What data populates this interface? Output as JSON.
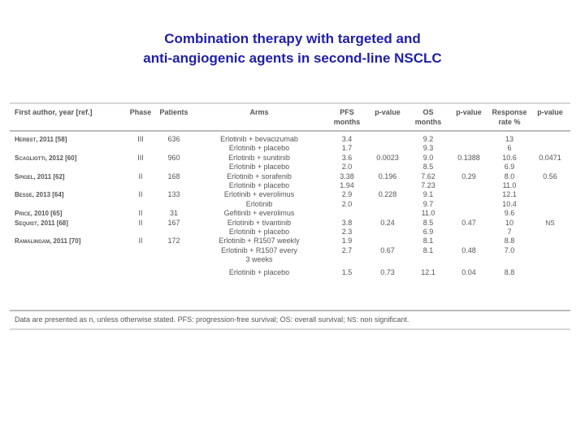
{
  "title": {
    "line1": "Combination therapy with targeted and",
    "line2": "anti-angiogenic agents in second-line NSCLC"
  },
  "table": {
    "headers": {
      "author": "First author, year [ref.]",
      "phase": "Phase",
      "patients": "Patients",
      "arms": "Arms",
      "pfs_line1": "PFS",
      "pfs_line2": "months",
      "pfs_p": "p-value",
      "os_line1": "OS",
      "os_line2": "months",
      "os_p": "p-value",
      "rr_line1": "Response",
      "rr_line2": "rate %",
      "rr_p": "p-value"
    },
    "rows": [
      {
        "author": "Herbst, 2011 [58]",
        "phase": "III",
        "patients": "636",
        "arm": "Erlotinib + bevacizumab",
        "pfs": "3.4",
        "pfs_p": "",
        "os": "9.2",
        "os_p": "",
        "rr": "13",
        "rr_p": ""
      },
      {
        "author": "",
        "phase": "",
        "patients": "",
        "arm": "Erlotinib + placebo",
        "pfs": "1.7",
        "pfs_p": "",
        "os": "9.3",
        "os_p": "",
        "rr": "6",
        "rr_p": ""
      },
      {
        "author": "Scagliotti, 2012 [60]",
        "phase": "III",
        "patients": "960",
        "arm": "Erlotinib + sunitinib",
        "pfs": "3.6",
        "pfs_p": "0.0023",
        "os": "9.0",
        "os_p": "0.1388",
        "rr": "10.6",
        "rr_p": "0.0471"
      },
      {
        "author": "",
        "phase": "",
        "patients": "",
        "arm": "Erlotinib + placebo",
        "pfs": "2.0",
        "pfs_p": "",
        "os": "8.5",
        "os_p": "",
        "rr": "6.9",
        "rr_p": ""
      },
      {
        "author": "Spigel, 2011 [62]",
        "phase": "II",
        "patients": "168",
        "arm": "Erlotinib + sorafenib",
        "pfs": "3.38",
        "pfs_p": "0.196",
        "os": "7.62",
        "os_p": "0.29",
        "rr": "8.0",
        "rr_p": "0.56"
      },
      {
        "author": "",
        "phase": "",
        "patients": "",
        "arm": "Erlotinib + placebo",
        "pfs": "1.94",
        "pfs_p": "",
        "os": "7.23",
        "os_p": "",
        "rr": "11.0",
        "rr_p": ""
      },
      {
        "author": "Besse, 2013 [64]",
        "phase": "II",
        "patients": "133",
        "arm": "Erlotinib + everolimus",
        "pfs": "2.9",
        "pfs_p": "0.228",
        "os": "9.1",
        "os_p": "",
        "rr": "12.1",
        "rr_p": ""
      },
      {
        "author": "",
        "phase": "",
        "patients": "",
        "arm": "Erlotinib",
        "pfs": "2.0",
        "pfs_p": "",
        "os": "9.7",
        "os_p": "",
        "rr": "10.4",
        "rr_p": ""
      },
      {
        "author": "Price, 2010 [65]",
        "phase": "II",
        "patients": "31",
        "arm": "Gefitinib + everolimus",
        "pfs": "",
        "pfs_p": "",
        "os": "11.0",
        "os_p": "",
        "rr": "9.6",
        "rr_p": ""
      },
      {
        "author": "Sequist, 2011 [68]",
        "phase": "II",
        "patients": "167",
        "arm": "Erlotinib + tivantinib",
        "pfs": "3.8",
        "pfs_p": "0.24",
        "os": "8.5",
        "os_p": "0.47",
        "rr": "10",
        "rr_p": "NS"
      },
      {
        "author": "",
        "phase": "",
        "patients": "",
        "arm": "Erlotinib + placebo",
        "pfs": "2.3",
        "pfs_p": "",
        "os": "6.9",
        "os_p": "",
        "rr": "7",
        "rr_p": ""
      },
      {
        "author": "Ramalingam, 2011 [70]",
        "phase": "II",
        "patients": "172",
        "arm": "Erlotinib + R1507 weekly",
        "pfs": "1.9",
        "pfs_p": "",
        "os": "8.1",
        "os_p": "",
        "rr": "8.8",
        "rr_p": ""
      },
      {
        "author": "",
        "phase": "",
        "patients": "",
        "arm": "Erlotinib + R1507 every",
        "pfs": "2.7",
        "pfs_p": "0.67",
        "os": "8.1",
        "os_p": "0.48",
        "rr": "7.0",
        "rr_p": ""
      },
      {
        "author": "",
        "phase": "",
        "patients": "",
        "arm": "3 weeks",
        "pfs": "",
        "pfs_p": "",
        "os": "",
        "os_p": "",
        "rr": "",
        "rr_p": ""
      },
      {
        "author": "",
        "phase": "",
        "patients": "",
        "arm": "Erlotinib + placebo",
        "pfs": "1.5",
        "pfs_p": "0.73",
        "os": "12.1",
        "os_p": "0.04",
        "rr": "8.8",
        "rr_p": ""
      }
    ]
  },
  "footer": {
    "text_before": "Data are presented as n, unless otherwise stated. PFS: progression-free survival; OS: overall survival; ",
    "ns_abbrev": "NS",
    "text_after": ": non significant."
  }
}
